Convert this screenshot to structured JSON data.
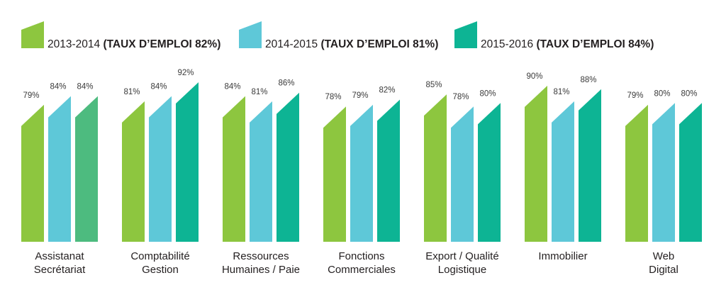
{
  "chart_data": {
    "type": "bar",
    "title": "",
    "xlabel": "",
    "ylabel": "",
    "ylim": [
      0,
      100
    ],
    "grid": false,
    "legend_position": "top",
    "categories": [
      [
        "Assistanat",
        "Secrétariat"
      ],
      [
        "Comptabilité",
        "Gestion"
      ],
      [
        "Ressources",
        "Humaines / Paie"
      ],
      [
        "Fonctions",
        "Commerciales"
      ],
      [
        "Export / Qualité",
        "Logistique"
      ],
      [
        "Immobilier"
      ],
      [
        "Web",
        "Digital"
      ]
    ],
    "series": [
      {
        "name": "2013-2014",
        "legend_detail": "(TAUX D’EMPLOI 82%)",
        "color": "#8dc63f",
        "values": [
          79,
          81,
          84,
          78,
          85,
          90,
          79
        ],
        "labels": [
          "79%",
          "81%",
          "84%",
          "78%",
          "85%",
          "90%",
          "79%"
        ]
      },
      {
        "name": "2014-2015",
        "legend_detail": "(TAUX D’EMPLOI 81%)",
        "color": "#5ec8d8",
        "values": [
          84,
          84,
          81,
          79,
          78,
          81,
          80
        ],
        "labels": [
          "84%",
          "84%",
          "81%",
          "79%",
          "78%",
          "81%",
          "80%"
        ]
      },
      {
        "name": "2015-2016",
        "legend_detail": "(TAUX D’EMPLOI 84%)",
        "color": "#0db494",
        "values": [
          84,
          92,
          86,
          82,
          80,
          88,
          80
        ],
        "labels": [
          "84%",
          "92%",
          "86%",
          "82%",
          "80%",
          "88%",
          "80%"
        ]
      }
    ],
    "point_colors": {
      "2015-2016": [
        "#4dbb7f",
        null,
        null,
        null,
        null,
        null,
        null
      ]
    }
  }
}
